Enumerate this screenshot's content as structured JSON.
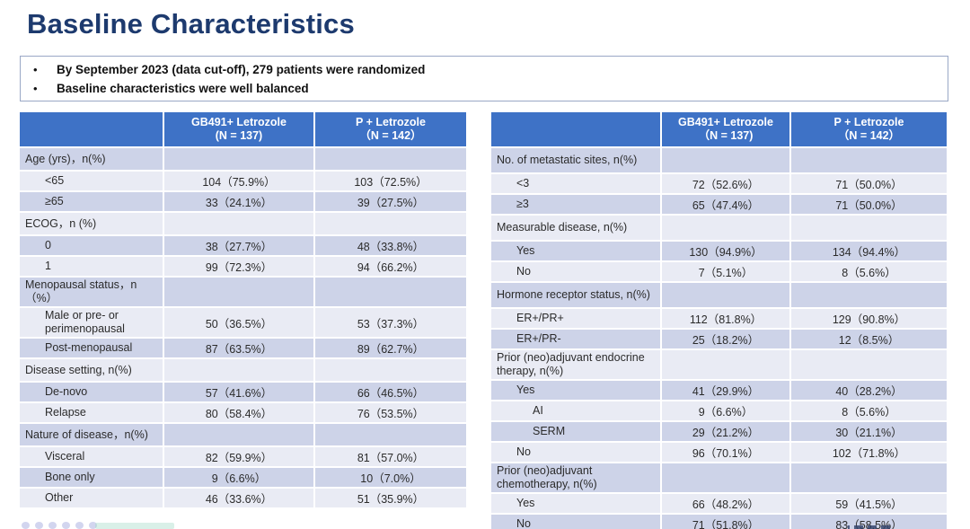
{
  "title": "Baseline Characteristics",
  "callout": {
    "bullets": [
      "By September 2023 (data cut-off), 279 patients were randomized",
      "Baseline characteristics were well balanced"
    ]
  },
  "colors": {
    "header_bg": "#3e72c6",
    "band_dark": "#cdd3e8",
    "band_light": "#e9ebf4",
    "title_text": "#1d3a6e"
  },
  "left_table": {
    "headers": [
      {
        "line1": "GB491+ Letrozole",
        "line2": "(N = 137)"
      },
      {
        "line1": "P + Letrozole",
        "line2": "（N = 142）"
      }
    ],
    "rows": [
      {
        "label": "Age (yrs)，n(%)",
        "indent": 0,
        "category": true,
        "values": [
          "",
          ""
        ]
      },
      {
        "label": "<65",
        "indent": 1,
        "category": false,
        "values": [
          "104（75.9%）",
          "103（72.5%）"
        ]
      },
      {
        "label": "≥65",
        "indent": 1,
        "category": false,
        "values": [
          "33（24.1%）",
          "39（27.5%）"
        ]
      },
      {
        "label": "ECOG，n (%)",
        "indent": 0,
        "category": true,
        "values": [
          "",
          ""
        ]
      },
      {
        "label": "0",
        "indent": 1,
        "category": false,
        "values": [
          "38（27.7%）",
          "48（33.8%）"
        ]
      },
      {
        "label": "1",
        "indent": 1,
        "category": false,
        "values": [
          "99（72.3%）",
          "94（66.2%）"
        ]
      },
      {
        "label": "Menopausal status，n（%）",
        "indent": 0,
        "category": true,
        "values": [
          "",
          ""
        ]
      },
      {
        "label": "Male or pre- or perimenopausal",
        "indent": 1,
        "category": false,
        "values": [
          "50（36.5%）",
          "53（37.3%）"
        ]
      },
      {
        "label": "Post-menopausal",
        "indent": 1,
        "category": false,
        "values": [
          "87（63.5%）",
          "89（62.7%）"
        ]
      },
      {
        "label": "Disease setting, n(%)",
        "indent": 0,
        "category": true,
        "values": [
          "",
          ""
        ]
      },
      {
        "label": "De-novo",
        "indent": 1,
        "category": false,
        "values": [
          "57（41.6%）",
          "66（46.5%）"
        ]
      },
      {
        "label": "Relapse",
        "indent": 1,
        "category": false,
        "values": [
          "80（58.4%）",
          "76（53.5%）"
        ]
      },
      {
        "label": "Nature of disease，n(%)",
        "indent": 0,
        "category": true,
        "values": [
          "",
          ""
        ]
      },
      {
        "label": "Visceral",
        "indent": 1,
        "category": false,
        "values": [
          "82（59.9%）",
          "81（57.0%）"
        ]
      },
      {
        "label": "Bone only",
        "indent": 1,
        "category": false,
        "values": [
          "9（6.6%）",
          "10（7.0%）"
        ]
      },
      {
        "label": "Other",
        "indent": 1,
        "category": false,
        "values": [
          "46（33.6%）",
          "51（35.9%）"
        ]
      }
    ]
  },
  "right_table": {
    "headers": [
      {
        "line1": "GB491+ Letrozole",
        "line2": "（N = 137)"
      },
      {
        "line1": "P + Letrozole",
        "line2": "（N = 142）"
      }
    ],
    "rows": [
      {
        "label": "No. of metastatic sites, n(%)",
        "indent": 0,
        "category": true,
        "values": [
          "",
          ""
        ]
      },
      {
        "label": "<3",
        "indent": 1,
        "category": false,
        "values": [
          "72（52.6%）",
          "71（50.0%）"
        ]
      },
      {
        "label": "≥3",
        "indent": 1,
        "category": false,
        "values": [
          "65（47.4%）",
          "71（50.0%）"
        ]
      },
      {
        "label": "Measurable disease, n(%)",
        "indent": 0,
        "category": true,
        "values": [
          "",
          ""
        ]
      },
      {
        "label": "Yes",
        "indent": 1,
        "category": false,
        "values": [
          "130（94.9%）",
          "134（94.4%）"
        ]
      },
      {
        "label": "No",
        "indent": 1,
        "category": false,
        "values": [
          "7（5.1%）",
          "8（5.6%）"
        ]
      },
      {
        "label": "Hormone receptor status, n(%)",
        "indent": 0,
        "category": true,
        "values": [
          "",
          ""
        ]
      },
      {
        "label": "ER+/PR+",
        "indent": 1,
        "category": false,
        "values": [
          "112（81.8%）",
          "129（90.8%）"
        ]
      },
      {
        "label": "ER+/PR-",
        "indent": 1,
        "category": false,
        "values": [
          "25（18.2%）",
          "12（8.5%）"
        ]
      },
      {
        "label": "Prior (neo)adjuvant endocrine therapy, n(%)",
        "indent": 0,
        "category": true,
        "values": [
          "",
          ""
        ]
      },
      {
        "label": "Yes",
        "indent": 1,
        "category": false,
        "values": [
          "41（29.9%）",
          "40（28.2%）"
        ]
      },
      {
        "label": "AI",
        "indent": 2,
        "category": false,
        "values": [
          "9（6.6%）",
          "8（5.6%）"
        ]
      },
      {
        "label": "SERM",
        "indent": 2,
        "category": false,
        "values": [
          "29（21.2%）",
          "30（21.1%）"
        ]
      },
      {
        "label": "No",
        "indent": 1,
        "category": false,
        "values": [
          "96（70.1%）",
          "102（71.8%）"
        ]
      },
      {
        "label": "Prior (neo)adjuvant chemotherapy, n(%)",
        "indent": 0,
        "category": true,
        "values": [
          "",
          ""
        ]
      },
      {
        "label": "Yes",
        "indent": 1,
        "category": false,
        "values": [
          "66（48.2%）",
          "59（41.5%）"
        ]
      },
      {
        "label": "No",
        "indent": 1,
        "category": false,
        "values": [
          "71（51.8%）",
          "83（58.5%）"
        ]
      }
    ]
  }
}
